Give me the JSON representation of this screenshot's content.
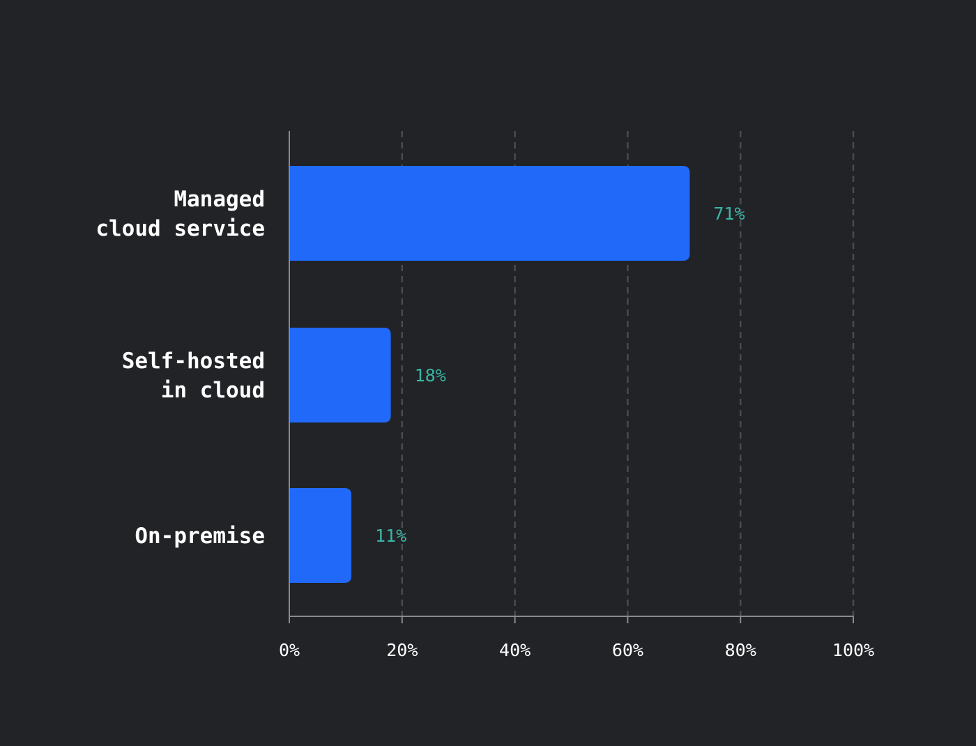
{
  "colors": {
    "background": "#222327",
    "bar": "#2069f9",
    "value_label": "#3ab5a5",
    "axis": "#8a8b90",
    "grid": "#4a4b50",
    "text": "#ffffff"
  },
  "chart_data": {
    "type": "bar",
    "orientation": "horizontal",
    "title": "",
    "xlabel": "",
    "ylabel": "",
    "categories": [
      [
        "Managed",
        "cloud service"
      ],
      [
        "Self-hosted",
        "in cloud"
      ],
      [
        "On-premise"
      ]
    ],
    "values": [
      71,
      18,
      11
    ],
    "value_labels": [
      "71%",
      "18%",
      "11%"
    ],
    "xlim": [
      0,
      100
    ],
    "xticks": [
      0,
      20,
      40,
      60,
      80,
      100
    ],
    "xtick_labels": [
      "0%",
      "20%",
      "40%",
      "60%",
      "80%",
      "100%"
    ],
    "grid": "vertical dashed",
    "legend": "none"
  }
}
